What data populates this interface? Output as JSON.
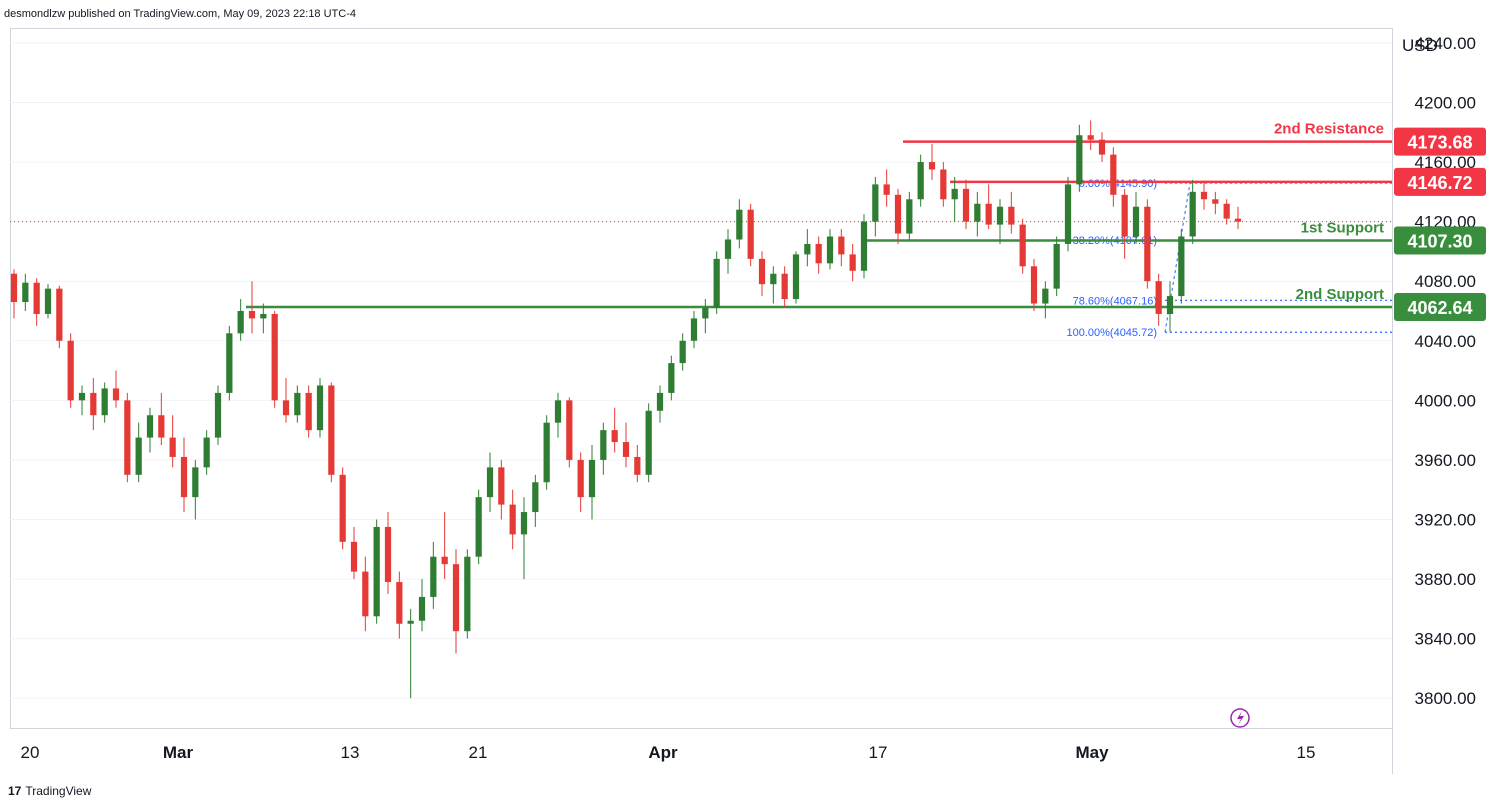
{
  "header": {
    "publisher_line": "desmondlzw published on TradingView.com, May 09, 2023 22:18 UTC-4"
  },
  "footer": {
    "brand": "TradingView"
  },
  "colors": {
    "up": "#2e7d32",
    "down": "#e53935",
    "resistance": "#f23645",
    "support": "#388e3c",
    "fib": "#2962ff",
    "grid": "#f0f3fa",
    "axis_text": "#131722"
  },
  "chart_data": {
    "type": "candlestick",
    "currency": "USD",
    "ylim": [
      3780,
      4250
    ],
    "y_ticks": [
      {
        "value": 4240,
        "label": "4240.00"
      },
      {
        "value": 4200,
        "label": "4200.00"
      },
      {
        "value": 4160,
        "label": "4160.00"
      },
      {
        "value": 4120,
        "label": "4120.00"
      },
      {
        "value": 4080,
        "label": "4080.00"
      },
      {
        "value": 4040,
        "label": "4040.00"
      },
      {
        "value": 4000,
        "label": "4000.00"
      },
      {
        "value": 3960,
        "label": "3960.00"
      },
      {
        "value": 3920,
        "label": "3920.00"
      },
      {
        "value": 3880,
        "label": "3880.00"
      },
      {
        "value": 3840,
        "label": "3840.00"
      },
      {
        "value": 3800,
        "label": "3800.00"
      }
    ],
    "x_ticks": [
      {
        "label": "20",
        "bold": false
      },
      {
        "label": "Mar",
        "bold": true
      },
      {
        "label": "13",
        "bold": false
      },
      {
        "label": "21",
        "bold": false
      },
      {
        "label": "Apr",
        "bold": true
      },
      {
        "label": "17",
        "bold": false
      },
      {
        "label": "May",
        "bold": true
      },
      {
        "label": "15",
        "bold": false
      }
    ],
    "levels": [
      {
        "name": "2nd Resistance",
        "value": 4173.68,
        "value_label": "4173.68",
        "kind": "resistance",
        "show_name": true
      },
      {
        "name": "",
        "value": 4146.72,
        "value_label": "4146.72",
        "kind": "resistance",
        "show_name": false
      },
      {
        "name": "1st Support",
        "value": 4107.3,
        "value_label": "4107.30",
        "kind": "support",
        "show_name": true
      },
      {
        "name": "2nd Support",
        "value": 4062.64,
        "value_label": "4062.64",
        "kind": "support",
        "show_name": true
      }
    ],
    "fib_levels": [
      {
        "label": "0.00%(4145.90)",
        "value": 4145.9
      },
      {
        "label": "38.20%(4107.61)",
        "value": 4107.61
      },
      {
        "label": "78.60%(4067.16)",
        "value": 4067.16
      },
      {
        "label": "100.00%(4045.72)",
        "value": 4045.72
      }
    ],
    "last_price": 4120,
    "candles": [
      {
        "o": 4085,
        "h": 4088,
        "l": 4055,
        "c": 4066
      },
      {
        "o": 4066,
        "h": 4085,
        "l": 4060,
        "c": 4079
      },
      {
        "o": 4079,
        "h": 4082,
        "l": 4050,
        "c": 4058
      },
      {
        "o": 4058,
        "h": 4078,
        "l": 4055,
        "c": 4075
      },
      {
        "o": 4075,
        "h": 4077,
        "l": 4035,
        "c": 4040
      },
      {
        "o": 4040,
        "h": 4045,
        "l": 3995,
        "c": 4000
      },
      {
        "o": 4000,
        "h": 4010,
        "l": 3990,
        "c": 4005
      },
      {
        "o": 4005,
        "h": 4015,
        "l": 3980,
        "c": 3990
      },
      {
        "o": 3990,
        "h": 4012,
        "l": 3985,
        "c": 4008
      },
      {
        "o": 4008,
        "h": 4020,
        "l": 3995,
        "c": 4000
      },
      {
        "o": 4000,
        "h": 4005,
        "l": 3945,
        "c": 3950
      },
      {
        "o": 3950,
        "h": 3985,
        "l": 3945,
        "c": 3975
      },
      {
        "o": 3975,
        "h": 3995,
        "l": 3965,
        "c": 3990
      },
      {
        "o": 3990,
        "h": 4005,
        "l": 3970,
        "c": 3975
      },
      {
        "o": 3975,
        "h": 3990,
        "l": 3955,
        "c": 3962
      },
      {
        "o": 3962,
        "h": 3975,
        "l": 3925,
        "c": 3935
      },
      {
        "o": 3935,
        "h": 3960,
        "l": 3920,
        "c": 3955
      },
      {
        "o": 3955,
        "h": 3980,
        "l": 3950,
        "c": 3975
      },
      {
        "o": 3975,
        "h": 4010,
        "l": 3970,
        "c": 4005
      },
      {
        "o": 4005,
        "h": 4050,
        "l": 4000,
        "c": 4045
      },
      {
        "o": 4045,
        "h": 4068,
        "l": 4040,
        "c": 4060
      },
      {
        "o": 4060,
        "h": 4080,
        "l": 4045,
        "c": 4055
      },
      {
        "o": 4055,
        "h": 4065,
        "l": 4045,
        "c": 4058
      },
      {
        "o": 4058,
        "h": 4060,
        "l": 3995,
        "c": 4000
      },
      {
        "o": 4000,
        "h": 4015,
        "l": 3985,
        "c": 3990
      },
      {
        "o": 3990,
        "h": 4010,
        "l": 3985,
        "c": 4005
      },
      {
        "o": 4005,
        "h": 4010,
        "l": 3975,
        "c": 3980
      },
      {
        "o": 3980,
        "h": 4015,
        "l": 3975,
        "c": 4010
      },
      {
        "o": 4010,
        "h": 4012,
        "l": 3945,
        "c": 3950
      },
      {
        "o": 3950,
        "h": 3955,
        "l": 3900,
        "c": 3905
      },
      {
        "o": 3905,
        "h": 3915,
        "l": 3880,
        "c": 3885
      },
      {
        "o": 3885,
        "h": 3895,
        "l": 3845,
        "c": 3855
      },
      {
        "o": 3855,
        "h": 3920,
        "l": 3850,
        "c": 3915
      },
      {
        "o": 3915,
        "h": 3925,
        "l": 3870,
        "c": 3878
      },
      {
        "o": 3878,
        "h": 3885,
        "l": 3840,
        "c": 3850
      },
      {
        "o": 3850,
        "h": 3860,
        "l": 3800,
        "c": 3852
      },
      {
        "o": 3852,
        "h": 3880,
        "l": 3845,
        "c": 3868
      },
      {
        "o": 3868,
        "h": 3905,
        "l": 3860,
        "c": 3895
      },
      {
        "o": 3895,
        "h": 3925,
        "l": 3880,
        "c": 3890
      },
      {
        "o": 3890,
        "h": 3900,
        "l": 3830,
        "c": 3845
      },
      {
        "o": 3845,
        "h": 3900,
        "l": 3840,
        "c": 3895
      },
      {
        "o": 3895,
        "h": 3940,
        "l": 3890,
        "c": 3935
      },
      {
        "o": 3935,
        "h": 3965,
        "l": 3925,
        "c": 3955
      },
      {
        "o": 3955,
        "h": 3960,
        "l": 3920,
        "c": 3930
      },
      {
        "o": 3930,
        "h": 3940,
        "l": 3900,
        "c": 3910
      },
      {
        "o": 3910,
        "h": 3935,
        "l": 3880,
        "c": 3925
      },
      {
        "o": 3925,
        "h": 3950,
        "l": 3915,
        "c": 3945
      },
      {
        "o": 3945,
        "h": 3990,
        "l": 3940,
        "c": 3985
      },
      {
        "o": 3985,
        "h": 4005,
        "l": 3975,
        "c": 4000
      },
      {
        "o": 4000,
        "h": 4002,
        "l": 3955,
        "c": 3960
      },
      {
        "o": 3960,
        "h": 3965,
        "l": 3925,
        "c": 3935
      },
      {
        "o": 3935,
        "h": 3970,
        "l": 3920,
        "c": 3960
      },
      {
        "o": 3960,
        "h": 3985,
        "l": 3950,
        "c": 3980
      },
      {
        "o": 3980,
        "h": 3995,
        "l": 3965,
        "c": 3972
      },
      {
        "o": 3972,
        "h": 3985,
        "l": 3955,
        "c": 3962
      },
      {
        "o": 3962,
        "h": 3970,
        "l": 3945,
        "c": 3950
      },
      {
        "o": 3950,
        "h": 3998,
        "l": 3945,
        "c": 3993
      },
      {
        "o": 3993,
        "h": 4010,
        "l": 3985,
        "c": 4005
      },
      {
        "o": 4005,
        "h": 4030,
        "l": 4000,
        "c": 4025
      },
      {
        "o": 4025,
        "h": 4045,
        "l": 4020,
        "c": 4040
      },
      {
        "o": 4040,
        "h": 4060,
        "l": 4035,
        "c": 4055
      },
      {
        "o": 4055,
        "h": 4068,
        "l": 4045,
        "c": 4062
      },
      {
        "o": 4062,
        "h": 4100,
        "l": 4058,
        "c": 4095
      },
      {
        "o": 4095,
        "h": 4115,
        "l": 4085,
        "c": 4108
      },
      {
        "o": 4108,
        "h": 4135,
        "l": 4102,
        "c": 4128
      },
      {
        "o": 4128,
        "h": 4132,
        "l": 4090,
        "c": 4095
      },
      {
        "o": 4095,
        "h": 4100,
        "l": 4070,
        "c": 4078
      },
      {
        "o": 4078,
        "h": 4090,
        "l": 4065,
        "c": 4085
      },
      {
        "o": 4085,
        "h": 4090,
        "l": 4062,
        "c": 4068
      },
      {
        "o": 4068,
        "h": 4100,
        "l": 4065,
        "c": 4098
      },
      {
        "o": 4098,
        "h": 4115,
        "l": 4090,
        "c": 4105
      },
      {
        "o": 4105,
        "h": 4110,
        "l": 4085,
        "c": 4092
      },
      {
        "o": 4092,
        "h": 4115,
        "l": 4088,
        "c": 4110
      },
      {
        "o": 4110,
        "h": 4115,
        "l": 4090,
        "c": 4098
      },
      {
        "o": 4098,
        "h": 4105,
        "l": 4080,
        "c": 4087
      },
      {
        "o": 4087,
        "h": 4125,
        "l": 4082,
        "c": 4120
      },
      {
        "o": 4120,
        "h": 4150,
        "l": 4110,
        "c": 4145
      },
      {
        "o": 4145,
        "h": 4155,
        "l": 4130,
        "c": 4138
      },
      {
        "o": 4138,
        "h": 4142,
        "l": 4105,
        "c": 4112
      },
      {
        "o": 4112,
        "h": 4140,
        "l": 4108,
        "c": 4135
      },
      {
        "o": 4135,
        "h": 4165,
        "l": 4130,
        "c": 4160
      },
      {
        "o": 4160,
        "h": 4172,
        "l": 4148,
        "c": 4155
      },
      {
        "o": 4155,
        "h": 4160,
        "l": 4130,
        "c": 4135
      },
      {
        "o": 4135,
        "h": 4150,
        "l": 4120,
        "c": 4142
      },
      {
        "o": 4142,
        "h": 4148,
        "l": 4115,
        "c": 4120
      },
      {
        "o": 4120,
        "h": 4140,
        "l": 4110,
        "c": 4132
      },
      {
        "o": 4132,
        "h": 4145,
        "l": 4115,
        "c": 4118
      },
      {
        "o": 4118,
        "h": 4135,
        "l": 4105,
        "c": 4130
      },
      {
        "o": 4130,
        "h": 4140,
        "l": 4112,
        "c": 4118
      },
      {
        "o": 4118,
        "h": 4122,
        "l": 4085,
        "c": 4090
      },
      {
        "o": 4090,
        "h": 4095,
        "l": 4060,
        "c": 4065
      },
      {
        "o": 4065,
        "h": 4080,
        "l": 4055,
        "c": 4075
      },
      {
        "o": 4075,
        "h": 4110,
        "l": 4070,
        "c": 4105
      },
      {
        "o": 4105,
        "h": 4150,
        "l": 4100,
        "c": 4145
      },
      {
        "o": 4145,
        "h": 4185,
        "l": 4140,
        "c": 4178
      },
      {
        "o": 4178,
        "h": 4188,
        "l": 4168,
        "c": 4175
      },
      {
        "o": 4175,
        "h": 4180,
        "l": 4160,
        "c": 4165
      },
      {
        "o": 4165,
        "h": 4170,
        "l": 4130,
        "c": 4138
      },
      {
        "o": 4138,
        "h": 4142,
        "l": 4095,
        "c": 4110
      },
      {
        "o": 4110,
        "h": 4140,
        "l": 4105,
        "c": 4130
      },
      {
        "o": 4130,
        "h": 4135,
        "l": 4075,
        "c": 4080
      },
      {
        "o": 4080,
        "h": 4085,
        "l": 4050,
        "c": 4058
      },
      {
        "o": 4058,
        "h": 4080,
        "l": 4046,
        "c": 4070
      },
      {
        "o": 4070,
        "h": 4115,
        "l": 4065,
        "c": 4110
      },
      {
        "o": 4110,
        "h": 4148,
        "l": 4105,
        "c": 4140
      },
      {
        "o": 4140,
        "h": 4146,
        "l": 4128,
        "c": 4135
      },
      {
        "o": 4135,
        "h": 4140,
        "l": 4125,
        "c": 4132
      },
      {
        "o": 4132,
        "h": 4135,
        "l": 4118,
        "c": 4122
      },
      {
        "o": 4122,
        "h": 4130,
        "l": 4115,
        "c": 4120
      }
    ]
  }
}
